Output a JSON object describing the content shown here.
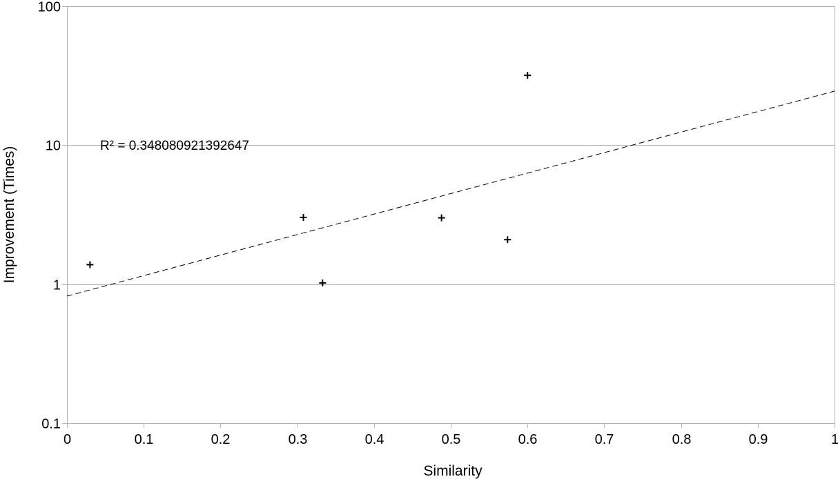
{
  "chart_data": {
    "type": "scatter",
    "title": "",
    "xlabel": "Similarity",
    "ylabel": "Improvement (Times)",
    "xlim": [
      0,
      1
    ],
    "ylim": [
      0.1,
      100
    ],
    "yscale": "log",
    "x_ticks": [
      "0",
      "0.1",
      "0.2",
      "0.3",
      "0.4",
      "0.5",
      "0.6",
      "0.7",
      "0.8",
      "0.9",
      "1"
    ],
    "y_ticks": [
      "0.1",
      "1",
      "10",
      "100"
    ],
    "grid": "horizontal",
    "legend": "none",
    "marker": "plus",
    "series": [
      {
        "points": [
          {
            "x": 0.03,
            "y": 1.38
          },
          {
            "x": 0.308,
            "y": 3.02
          },
          {
            "x": 0.333,
            "y": 1.02
          },
          {
            "x": 0.488,
            "y": 3.0
          },
          {
            "x": 0.574,
            "y": 2.09
          },
          {
            "x": 0.6,
            "y": 31.8
          }
        ]
      }
    ],
    "trendline": {
      "type": "exponential",
      "style": "dashed",
      "r_squared_label": "R² = 0.348080921392647",
      "y_at_xmin": 0.82,
      "y_at_xmax": 24.5
    },
    "colors": {
      "marker": "#000000",
      "grid": "#b3b3b3",
      "trendline": "#000000"
    }
  }
}
